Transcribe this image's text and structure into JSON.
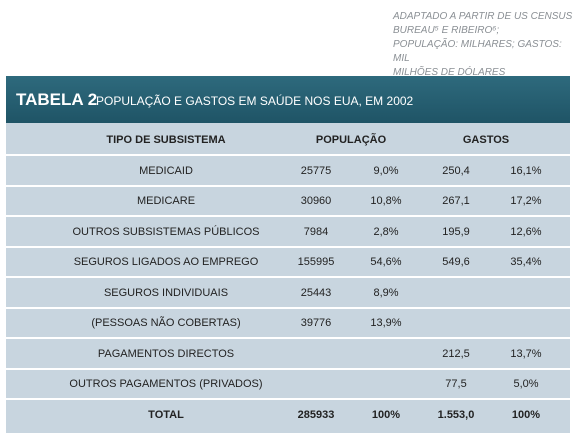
{
  "note": [
    "ADAPTADO A PARTIR DE US CENSUS",
    "BUREAU⁵ E RIBEIRO⁶;",
    "POPULAÇÃO: MILHARES; GASTOS: MIL",
    "MILHÕES DE DÓLARES"
  ],
  "header": {
    "label": "TABELA 2",
    "title": "POPULAÇÃO E GASTOS EM SAÚDE NOS EUA, EM 2002"
  },
  "table": {
    "columns": [
      "TIPO DE SUBSISTEMA",
      "POPULAÇÃO",
      "GASTOS"
    ],
    "rows": [
      [
        "MEDICAID",
        "25775",
        "9,0%",
        "250,4",
        "16,1%"
      ],
      [
        "MEDICARE",
        "30960",
        "10,8%",
        "267,1",
        "17,2%"
      ],
      [
        "OUTROS SUBSISTEMAS PÚBLICOS",
        "7984",
        "2,8%",
        "195,9",
        "12,6%"
      ],
      [
        "SEGUROS LIGADOS AO EMPREGO",
        "155995",
        "54,6%",
        "549,6",
        "35,4%"
      ],
      [
        "SEGUROS INDIVIDUAIS",
        "25443",
        "8,9%",
        null,
        null
      ],
      [
        "(PESSOAS NÃO COBERTAS)",
        "39776",
        "13,9%",
        null,
        null
      ],
      [
        "PAGAMENTOS DIRECTOS",
        null,
        null,
        "212,5",
        "13,7%"
      ],
      [
        "OUTROS PAGAMENTOS (PRIVADOS)",
        null,
        null,
        "77,5",
        "5,0%"
      ],
      [
        "TOTAL",
        "285933",
        "100%",
        "1.553,0",
        "100%"
      ]
    ]
  }
}
